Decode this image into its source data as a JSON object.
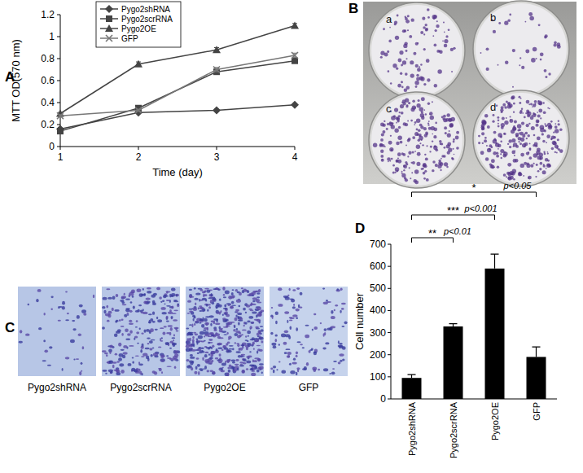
{
  "panel_labels": [
    "A",
    "B",
    "C",
    "D"
  ],
  "colony_plates": {
    "labels": [
      "a",
      "b",
      "c",
      "d"
    ]
  },
  "chart_data": [
    {
      "type": "line",
      "x_label": "Time (day)",
      "y_label": "MTT OD(570 nm)",
      "x": [
        1,
        2,
        3,
        4
      ],
      "xlim": [
        1,
        4
      ],
      "xticks": [
        1,
        2,
        3,
        4
      ],
      "ylim": [
        0,
        1.2
      ],
      "yticks": [
        0,
        0.2,
        0.4,
        0.6,
        0.8,
        1,
        1.2
      ],
      "legend": "upper left",
      "series": [
        {
          "name": "Pygo2shRNA",
          "color": "#444444",
          "marker": "diamond",
          "values": [
            0.16,
            0.31,
            0.33,
            0.38
          ],
          "errors": [
            0.01,
            0.01,
            0.01,
            0.01
          ]
        },
        {
          "name": "Pygo2scrRNA",
          "color": "#444444",
          "marker": "square",
          "values": [
            0.14,
            0.35,
            0.68,
            0.78
          ],
          "errors": [
            0.01,
            0.01,
            0.02,
            0.01
          ]
        },
        {
          "name": "Pygo2OE",
          "color": "#444444",
          "marker": "triangle",
          "values": [
            0.3,
            0.75,
            0.88,
            1.1
          ],
          "errors": [
            0.01,
            0.02,
            0.02,
            0.02
          ]
        },
        {
          "name": "GFP",
          "color": "#777777",
          "marker": "x",
          "values": [
            0.28,
            0.33,
            0.7,
            0.83
          ],
          "errors": [
            0.01,
            0.01,
            0.02,
            0.02
          ]
        }
      ]
    },
    {
      "type": "bar",
      "y_label": "Cell number",
      "categories": [
        "Pygo2shRNA",
        "Pygo2scrRNA",
        "Pygo2OE",
        "GFP"
      ],
      "values": [
        95,
        328,
        590,
        190
      ],
      "errors": [
        15,
        12,
        65,
        45
      ],
      "color": "#000000",
      "ylim": [
        0,
        700
      ],
      "yticks": [
        0,
        100,
        200,
        300,
        400,
        500,
        600,
        700
      ],
      "annotations": [
        {
          "text": "*",
          "label": "p<0.05",
          "from": "Pygo2shRNA",
          "to": "GFP"
        },
        {
          "text": "***",
          "label": "p<0.001",
          "from": "Pygo2shRNA",
          "to": "Pygo2OE"
        },
        {
          "text": "**",
          "label": "p<0.01",
          "from": "Pygo2shRNA",
          "to": "Pygo2scrRNA"
        }
      ]
    }
  ]
}
